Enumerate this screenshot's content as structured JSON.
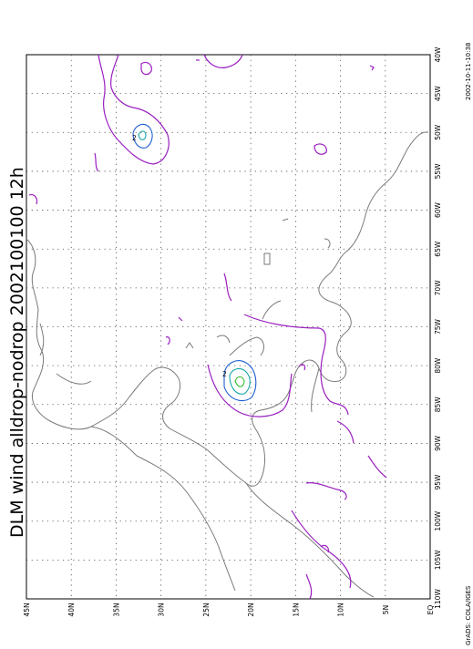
{
  "map": {
    "title": "DLM wind alldrop-nodrop 2002100100 12h",
    "timestamp": "2002-10-11-10:38",
    "credit": "GrADS: COLA/IGES",
    "contour_label": "2",
    "lon_labels": [
      "40W",
      "45W",
      "50W",
      "55W",
      "60W",
      "65W",
      "70W",
      "75W",
      "80W",
      "85W",
      "90W",
      "95W",
      "100W",
      "105W",
      "110W"
    ],
    "lat_labels": [
      "EQ",
      "5N",
      "10N",
      "15N",
      "20N",
      "25N",
      "30N",
      "35N",
      "40N",
      "45N"
    ],
    "colors": {
      "coastline": "#7a7a7a",
      "contour_purple": "#9a1fbf",
      "contour_blue": "#1f5fd0",
      "contour_cyan": "#14a7a7",
      "contour_green": "#2dbb2d"
    }
  }
}
